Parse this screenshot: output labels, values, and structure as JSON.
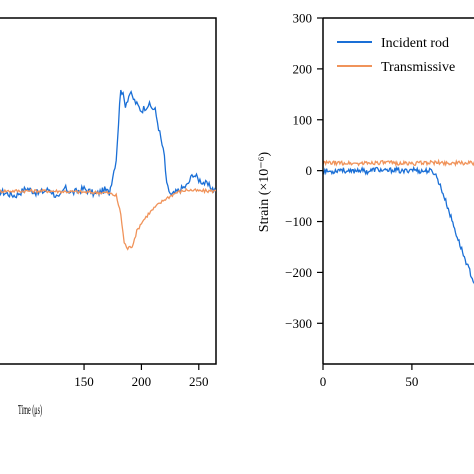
{
  "chart_data": [
    {
      "type": "line",
      "panel": "left (cropped)",
      "xlabel": "Time (μs)",
      "ylabel": "",
      "xlim": [
        75,
        265
      ],
      "ylim": [
        -300,
        300
      ],
      "x_ticks": [
        "150",
        "200",
        "250"
      ],
      "x_tick_values": [
        150,
        200,
        250
      ],
      "series": [
        {
          "color": "#1a6fd6",
          "points": [
            [
              75,
              0
            ],
            [
              90,
              -8
            ],
            [
              100,
              5
            ],
            [
              110,
              -4
            ],
            [
              120,
              3
            ],
            [
              128,
              -14
            ],
            [
              133,
              5
            ],
            [
              140,
              -3
            ],
            [
              150,
              4
            ],
            [
              160,
              -6
            ],
            [
              168,
              2
            ],
            [
              172,
              -3
            ],
            [
              178,
              55
            ],
            [
              182,
              180
            ],
            [
              186,
              150
            ],
            [
              190,
              170
            ],
            [
              196,
              150
            ],
            [
              200,
              140
            ],
            [
              206,
              150
            ],
            [
              212,
              140
            ],
            [
              216,
              100
            ],
            [
              220,
              60
            ],
            [
              222,
              10
            ],
            [
              226,
              -8
            ],
            [
              232,
              0
            ],
            [
              240,
              10
            ],
            [
              245,
              30
            ],
            [
              250,
              20
            ],
            [
              258,
              10
            ],
            [
              265,
              0
            ]
          ]
        },
        {
          "color": "#f0935a",
          "points": [
            [
              75,
              0
            ],
            [
              100,
              0
            ],
            [
              120,
              0
            ],
            [
              150,
              -2
            ],
            [
              170,
              -3
            ],
            [
              178,
              -8
            ],
            [
              182,
              -40
            ],
            [
              185,
              -90
            ],
            [
              188,
              -100
            ],
            [
              192,
              -95
            ],
            [
              196,
              -70
            ],
            [
              200,
              -55
            ],
            [
              206,
              -40
            ],
            [
              212,
              -28
            ],
            [
              220,
              -15
            ],
            [
              230,
              -3
            ],
            [
              240,
              2
            ],
            [
              250,
              0
            ],
            [
              265,
              0
            ]
          ]
        }
      ]
    },
    {
      "type": "line",
      "panel": "right (cropped)",
      "title": "",
      "xlabel": "",
      "ylabel": "Strain (×10⁻⁶)",
      "xlim": [
        0,
        90
      ],
      "ylim": [
        -380,
        300
      ],
      "y_ticks": [
        "300",
        "200",
        "100",
        "0",
        "−100",
        "−200",
        "−300"
      ],
      "y_tick_values": [
        300,
        200,
        100,
        0,
        -100,
        -200,
        -300
      ],
      "x_ticks": [
        "0",
        "50"
      ],
      "x_tick_values": [
        0,
        50
      ],
      "legend": {
        "position": "top-right"
      },
      "series": [
        {
          "name": "Incident rod",
          "color": "#1a6fd6",
          "points": [
            [
              0,
              0
            ],
            [
              5,
              -2
            ],
            [
              10,
              3
            ],
            [
              15,
              -3
            ],
            [
              20,
              2
            ],
            [
              25,
              -2
            ],
            [
              30,
              3
            ],
            [
              35,
              -1
            ],
            [
              40,
              2
            ],
            [
              45,
              -2
            ],
            [
              50,
              3
            ],
            [
              55,
              -1
            ],
            [
              60,
              0
            ],
            [
              63,
              -5
            ],
            [
              66,
              -30
            ],
            [
              70,
              -70
            ],
            [
              75,
              -125
            ],
            [
              80,
              -175
            ],
            [
              85,
              -220
            ],
            [
              88,
              -230
            ],
            [
              90,
              -240
            ]
          ]
        },
        {
          "name": "Transmissive",
          "color": "#f0935a",
          "points": [
            [
              0,
              15
            ],
            [
              10,
              15
            ],
            [
              20,
              14
            ],
            [
              30,
              16
            ],
            [
              40,
              15
            ],
            [
              50,
              14
            ],
            [
              60,
              16
            ],
            [
              70,
              15
            ],
            [
              80,
              15
            ],
            [
              90,
              15
            ]
          ]
        }
      ]
    }
  ]
}
